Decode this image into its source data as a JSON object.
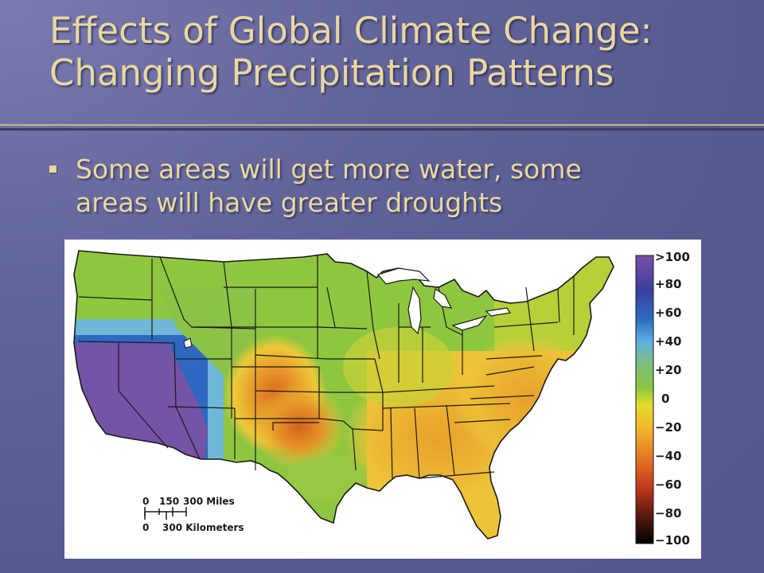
{
  "slide": {
    "title_line1": "Effects of Global Climate Change:",
    "title_line2": "Changing Precipitation Patterns",
    "bullet_line1": "Some areas will get more water, some",
    "bullet_line2": "areas will have greater droughts"
  },
  "map": {
    "legend_labels": [
      ">100",
      "+80",
      "+60",
      "+40",
      "+20",
      "0",
      "−20",
      "−40",
      "−60",
      "−80",
      "−100"
    ],
    "scale": {
      "miles_ticks": [
        "0",
        "150",
        "300 Miles"
      ],
      "km_ticks": [
        "0",
        "300 Kilometers"
      ]
    }
  },
  "colors": {
    "title": "#ead7a0",
    "background": "#5a5d93",
    "wet": "#7a55a8",
    "dry": "#e07820"
  }
}
